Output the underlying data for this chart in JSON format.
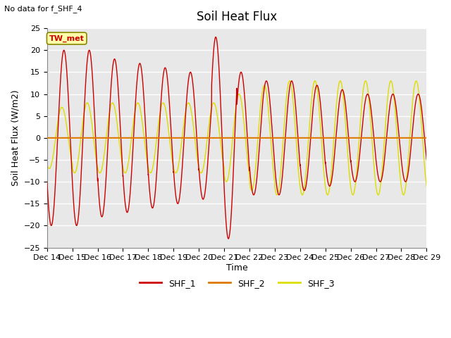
{
  "title": "Soil Heat Flux",
  "note": "No data for f_SHF_4",
  "xlabel": "Time",
  "ylabel": "Soil Heat Flux (W/m2)",
  "ylim": [
    -25,
    25
  ],
  "yticks": [
    -25,
    -20,
    -15,
    -10,
    -5,
    0,
    5,
    10,
    15,
    20,
    25
  ],
  "xtick_labels": [
    "Dec 14",
    "Dec 15",
    "Dec 16",
    "Dec 17",
    "Dec 18",
    "Dec 19",
    "Dec 20",
    "Dec 21",
    "Dec 22",
    "Dec 23",
    "Dec 24",
    "Dec 25",
    "Dec 26",
    "Dec 27",
    "Dec 28",
    "Dec 29"
  ],
  "shf1_color": "#cc0000",
  "shf2_color": "#dd7700",
  "shf3_color": "#dddd00",
  "annotation_text": "TW_met",
  "annotation_bg": "#ffffaa",
  "annotation_border": "#888800",
  "plot_bg": "#e8e8e8",
  "title_fontsize": 12,
  "axis_label_fontsize": 9,
  "tick_fontsize": 8,
  "note_fontsize": 8
}
